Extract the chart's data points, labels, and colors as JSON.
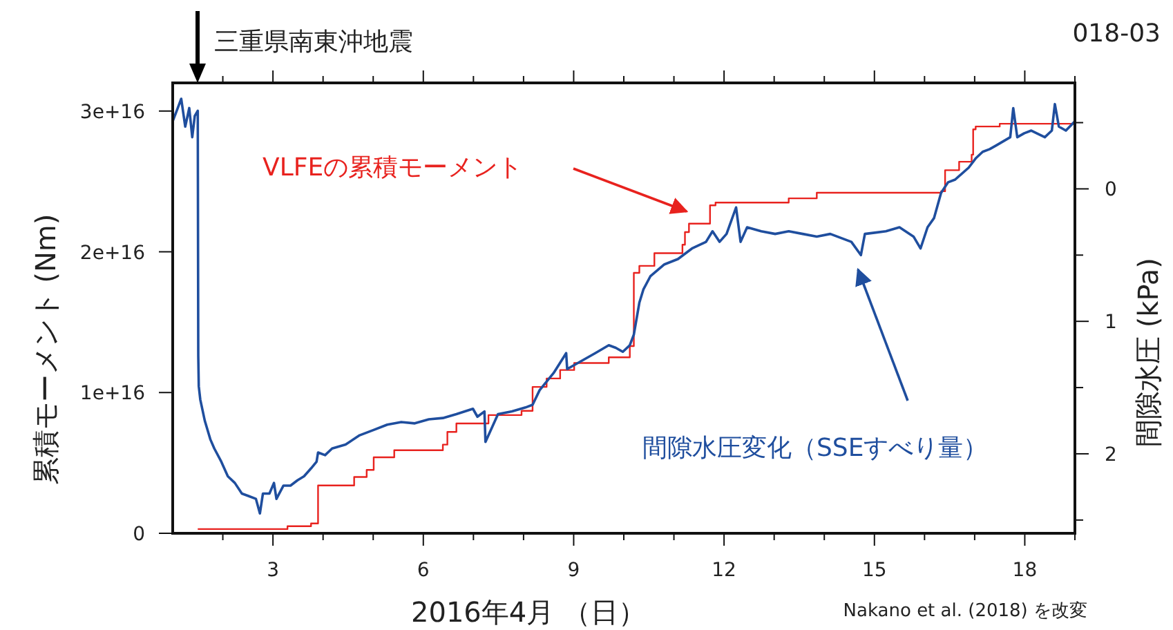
{
  "chart_data": {
    "type": "line",
    "title": "018-03",
    "xlabel": "2016年4月 （日）",
    "ylabel": "累積モーメント (Nm)",
    "y2label": "間隙水圧 (kPa)",
    "annotations": [
      "三重県南東沖地震",
      "Nakano et al. (2018) を改変"
    ],
    "xlim": [
      1,
      19
    ],
    "xticks": [
      {
        "value": 2,
        "label": null
      },
      3,
      {
        "value": 4,
        "label": null
      },
      {
        "value": 5,
        "label": null
      },
      6,
      {
        "value": 7,
        "label": null
      },
      {
        "value": 8,
        "label": null
      },
      9,
      {
        "value": 10,
        "label": null
      },
      {
        "value": 11,
        "label": null
      },
      12,
      {
        "value": 13,
        "label": null
      },
      {
        "value": 14,
        "label": null
      },
      15,
      {
        "value": 16,
        "label": null
      },
      {
        "value": 17,
        "label": null
      },
      18,
      {
        "value": 19,
        "label": null
      }
    ],
    "ylim": [
      0,
      3.2e+16
    ],
    "yticks": [
      0,
      {
        "value": 1e+16,
        "label": "1e+16"
      },
      {
        "value": 2e+16,
        "label": "2e+16"
      },
      {
        "value": 3e+16,
        "label": "3e+16"
      }
    ],
    "y2lim": [
      2.6,
      -0.8
    ],
    "y2ticks": [
      {
        "value": -0.5,
        "label": null
      },
      0,
      {
        "value": 0.5,
        "label": null
      },
      1,
      {
        "value": 1.5,
        "label": null
      },
      2,
      {
        "value": 2.5,
        "label": null
      }
    ],
    "grid": false,
    "legend": false,
    "series": [
      {
        "name": "VLFEの累積モーメント",
        "type": "step",
        "color": "#e8221e",
        "x": [
          1.5,
          3.29,
          3.76,
          3.9,
          4.62,
          4.87,
          5.01,
          5.42,
          6.39,
          6.48,
          6.66,
          7.3,
          7.96,
          8.18,
          8.46,
          8.73,
          9.01,
          9.7,
          10.12,
          10.2,
          10.31,
          10.61,
          11.17,
          11.22,
          11.3,
          11.72,
          11.83,
          13.29,
          13.85,
          16.33,
          16.41,
          16.69,
          16.94,
          16.97,
          17.02,
          17.5,
          19
        ],
        "values": [
          300000000000000.0,
          500000000000000.0,
          700000000000000.0,
          3400000000000000.0,
          4000000000000000.0,
          4500000000000000.0,
          5400000000000000.0,
          5900000000000000.0,
          6300000000000000.0,
          7200000000000000.0,
          7800000000000000.0,
          8400000000000000.0,
          8700000000000000.0,
          1.04e+16,
          1.1e+16,
          1.16e+16,
          1.21e+16,
          1.25e+16,
          1.33e+16,
          1.85e+16,
          1.9e+16,
          1.99e+16,
          2.05e+16,
          2.14e+16,
          2.2e+16,
          2.33e+16,
          2.35e+16,
          2.38e+16,
          2.42e+16,
          2.43e+16,
          2.58e+16,
          2.64e+16,
          2.69e+16,
          2.87e+16,
          2.89e+16,
          2.91e+16,
          2.91e+16
        ]
      },
      {
        "name": "間隙水圧変化（SSEすべり量）",
        "axis": "y2",
        "color": "#1f4e9e",
        "x": [
          1.0,
          1.08,
          1.17,
          1.25,
          1.33,
          1.39,
          1.44,
          1.5,
          1.51,
          1.52,
          1.55,
          1.64,
          1.75,
          1.83,
          1.97,
          2.1,
          2.24,
          2.38,
          2.52,
          2.66,
          2.74,
          2.8,
          2.93,
          3.02,
          3.07,
          3.21,
          3.35,
          3.49,
          3.62,
          3.76,
          3.87,
          3.9,
          4.04,
          4.18,
          4.45,
          4.73,
          5.01,
          5.28,
          5.56,
          5.83,
          6.11,
          6.39,
          6.66,
          6.99,
          7.08,
          7.22,
          7.24,
          7.49,
          7.77,
          8.04,
          8.18,
          8.32,
          8.6,
          8.85,
          8.87,
          9.15,
          9.43,
          9.7,
          9.84,
          9.98,
          10.12,
          10.2,
          10.31,
          10.39,
          10.53,
          10.81,
          11.08,
          11.36,
          11.64,
          11.77,
          11.91,
          12.05,
          12.24,
          12.33,
          12.46,
          12.74,
          13.02,
          13.29,
          13.57,
          13.85,
          14.12,
          14.54,
          14.73,
          14.81,
          15.23,
          15.5,
          15.78,
          15.92,
          16.06,
          16.19,
          16.33,
          16.47,
          16.61,
          16.88,
          17.02,
          17.16,
          17.3,
          17.44,
          17.71,
          17.77,
          17.85,
          17.99,
          18.13,
          18.4,
          18.54,
          18.6,
          18.68,
          18.82,
          19.0
        ],
        "values": [
          -0.51,
          -0.59,
          -0.68,
          -0.47,
          -0.61,
          -0.39,
          -0.55,
          -0.59,
          1.26,
          1.49,
          1.59,
          1.75,
          1.89,
          1.96,
          2.06,
          2.17,
          2.22,
          2.3,
          2.32,
          2.34,
          2.45,
          2.3,
          2.3,
          2.22,
          2.34,
          2.24,
          2.24,
          2.2,
          2.17,
          2.11,
          2.06,
          1.99,
          2.01,
          1.96,
          1.93,
          1.86,
          1.82,
          1.78,
          1.76,
          1.77,
          1.74,
          1.73,
          1.7,
          1.66,
          1.72,
          1.68,
          1.91,
          1.7,
          1.68,
          1.65,
          1.63,
          1.52,
          1.39,
          1.24,
          1.36,
          1.3,
          1.24,
          1.18,
          1.2,
          1.23,
          1.18,
          1.1,
          0.86,
          0.76,
          0.66,
          0.57,
          0.53,
          0.45,
          0.4,
          0.32,
          0.4,
          0.34,
          0.14,
          0.4,
          0.29,
          0.32,
          0.34,
          0.32,
          0.34,
          0.36,
          0.34,
          0.4,
          0.5,
          0.34,
          0.32,
          0.29,
          0.36,
          0.45,
          0.29,
          0.22,
          0.03,
          -0.05,
          -0.07,
          -0.16,
          -0.23,
          -0.28,
          -0.3,
          -0.33,
          -0.39,
          -0.61,
          -0.39,
          -0.42,
          -0.44,
          -0.39,
          -0.44,
          -0.64,
          -0.47,
          -0.44,
          -0.51
        ]
      }
    ]
  }
}
